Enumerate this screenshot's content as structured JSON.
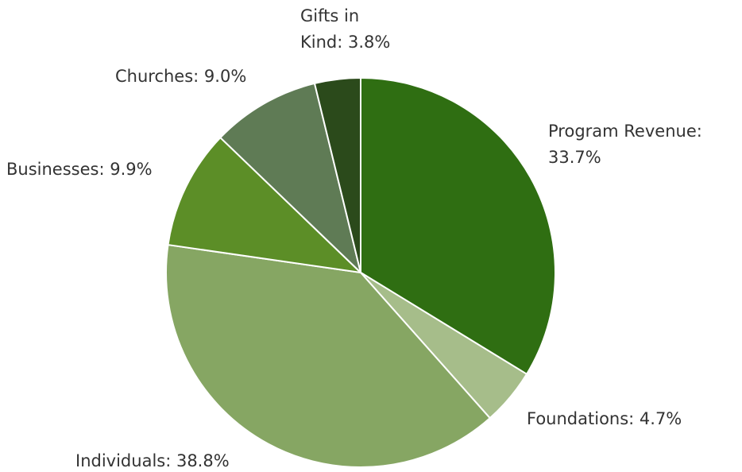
{
  "chart_data": {
    "type": "pie",
    "labels": [
      [
        "Program Revenue:",
        "33.7%"
      ],
      [
        "Foundations: 4.7%"
      ],
      [
        "Individuals: 38.8%"
      ],
      [
        "Businesses: 9.9%"
      ],
      [
        "Churches: 9.0%"
      ],
      [
        "Gifts in",
        "Kind: 3.8%"
      ]
    ],
    "values": [
      33.7,
      4.7,
      38.8,
      9.9,
      9.0,
      3.8
    ],
    "colors": [
      "#2f6e12",
      "#a6bd8a",
      "#86a663",
      "#5c8e27",
      "#5f7b55",
      "#2b4a1b"
    ]
  }
}
